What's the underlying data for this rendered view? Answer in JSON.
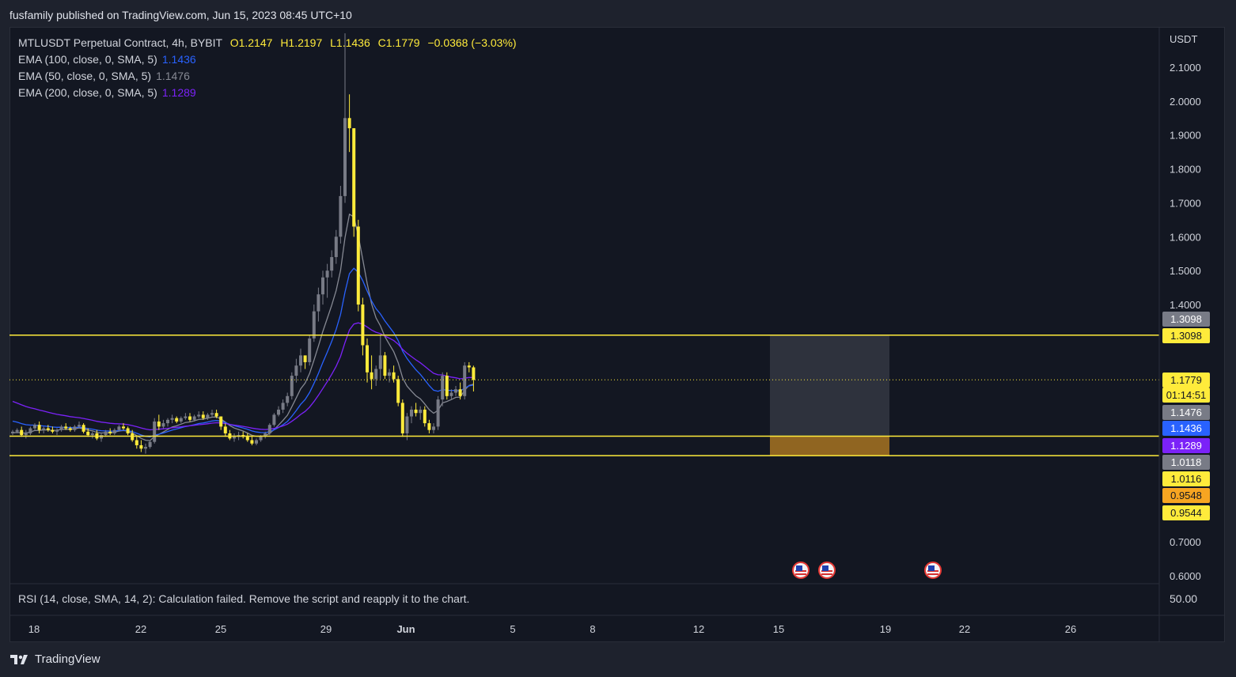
{
  "header": {
    "text": "fusfamily published on TradingView.com, Jun 15, 2023 08:45 UTC+10"
  },
  "legend": {
    "symbol": "MTLUSDT Perpetual Contract, 4h, BYBIT",
    "ohlc": {
      "o": "O1.2147",
      "h": "H1.2197",
      "l": "L1.1436",
      "c": "C1.1779",
      "change": "−0.0368 (−3.03%)"
    },
    "emas": [
      {
        "label": "EMA (100, close, 0, SMA, 5)",
        "value": "1.1436",
        "color": "#2962ff"
      },
      {
        "label": "EMA (50, close, 0, SMA, 5)",
        "value": "1.1476",
        "color": "#868993"
      },
      {
        "label": "EMA (200, close, 0, SMA, 5)",
        "value": "1.1289",
        "color": "#7b22f8"
      }
    ]
  },
  "price_scale": {
    "currency": "USDT",
    "tags": [
      {
        "text": "1.3098",
        "bg": "#787b86",
        "fg": "#ffffff"
      },
      {
        "text": "1.3098",
        "bg": "#ffeb3b",
        "fg": "#131722"
      },
      {
        "text": "1.1779",
        "bg": "#ffeb3b",
        "fg": "#131722"
      },
      {
        "text": "01:14:51",
        "bg": "#ffeb3b",
        "fg": "#131722"
      },
      {
        "text": "1.1476",
        "bg": "#787b86",
        "fg": "#ffffff"
      },
      {
        "text": "1.1436",
        "bg": "#2962ff",
        "fg": "#ffffff"
      },
      {
        "text": "1.1289",
        "bg": "#7b22f8",
        "fg": "#ffffff"
      },
      {
        "text": "1.0118",
        "bg": "#787b86",
        "fg": "#ffffff"
      },
      {
        "text": "1.0116",
        "bg": "#ffeb3b",
        "fg": "#131722"
      },
      {
        "text": "0.9548",
        "bg": "#f7a521",
        "fg": "#131722"
      },
      {
        "text": "0.9544",
        "bg": "#ffeb3b",
        "fg": "#131722"
      }
    ]
  },
  "rsi": {
    "text": "RSI (14, close, SMA, 14, 2): Calculation failed. Remove the script and reapply it to the chart.",
    "value": "50.00"
  },
  "footer": {
    "brand": "TradingView"
  },
  "chart_data": {
    "type": "candlestick",
    "symbol": "MTLUSDT Perpetual Contract",
    "timeframe": "4h",
    "exchange": "BYBIT",
    "currency": "USDT",
    "price_axis_ticks": [
      "0.6000",
      "0.7000",
      "1.4000",
      "1.5000",
      "1.6000",
      "1.7000",
      "1.8000",
      "1.9000",
      "2.0000",
      "2.1000"
    ],
    "time_axis_ticks": [
      "18",
      "22",
      "25",
      "29",
      "Jun",
      "5",
      "8",
      "12",
      "15",
      "19",
      "22",
      "26"
    ],
    "horizontal_lines": [
      1.3098,
      1.0116,
      0.9544
    ],
    "position_box": {
      "top": 1.3098,
      "entry": 1.0116,
      "stop": 0.9544
    },
    "current_price": 1.1779,
    "bar_countdown": "01:14:51",
    "ema": {
      "ema100": 1.1436,
      "ema50": 1.1476,
      "ema200": 1.1289
    },
    "colors": {
      "up": "#787b86",
      "down": "#ffeb3b",
      "ema100": "#2962ff",
      "ema50": "#868993",
      "ema200": "#7b22f8",
      "hline": "#ffeb3b"
    },
    "candles": [
      [
        1.02,
        1.03,
        1.015,
        1.025
      ],
      [
        1.025,
        1.035,
        1.02,
        1.03
      ],
      [
        1.03,
        1.04,
        1.01,
        1.015
      ],
      [
        1.015,
        1.03,
        1.005,
        1.02
      ],
      [
        1.02,
        1.04,
        1.015,
        1.035
      ],
      [
        1.035,
        1.05,
        1.03,
        1.045
      ],
      [
        1.045,
        1.055,
        1.02,
        1.03
      ],
      [
        1.03,
        1.04,
        1.02,
        1.035
      ],
      [
        1.035,
        1.045,
        1.025,
        1.03
      ],
      [
        1.03,
        1.04,
        1.02,
        1.025
      ],
      [
        1.025,
        1.035,
        1.015,
        1.03
      ],
      [
        1.03,
        1.045,
        1.025,
        1.04
      ],
      [
        1.04,
        1.05,
        1.03,
        1.035
      ],
      [
        1.035,
        1.04,
        1.025,
        1.03
      ],
      [
        1.03,
        1.045,
        1.025,
        1.04
      ],
      [
        1.04,
        1.055,
        1.035,
        1.045
      ],
      [
        1.045,
        1.05,
        1.02,
        1.025
      ],
      [
        1.025,
        1.035,
        1.01,
        1.015
      ],
      [
        1.015,
        1.025,
        1.005,
        1.02
      ],
      [
        1.02,
        1.03,
        1.0,
        1.005
      ],
      [
        1.005,
        1.02,
        0.995,
        1.015
      ],
      [
        1.015,
        1.03,
        1.01,
        1.025
      ],
      [
        1.025,
        1.035,
        1.015,
        1.02
      ],
      [
        1.02,
        1.035,
        1.015,
        1.03
      ],
      [
        1.03,
        1.045,
        1.025,
        1.04
      ],
      [
        1.04,
        1.05,
        1.03,
        1.035
      ],
      [
        1.035,
        1.04,
        1.015,
        1.02
      ],
      [
        1.02,
        1.03,
        0.995,
        1.0
      ],
      [
        1.0,
        1.01,
        0.975,
        0.985
      ],
      [
        0.985,
        1.0,
        0.965,
        0.975
      ],
      [
        0.975,
        0.99,
        0.96,
        0.98
      ],
      [
        0.98,
        1.0,
        0.975,
        0.995
      ],
      [
        0.995,
        1.065,
        0.99,
        1.055
      ],
      [
        1.055,
        1.075,
        1.03,
        1.04
      ],
      [
        1.04,
        1.06,
        1.035,
        1.05
      ],
      [
        1.05,
        1.065,
        1.04,
        1.06
      ],
      [
        1.06,
        1.075,
        1.05,
        1.065
      ],
      [
        1.065,
        1.07,
        1.05,
        1.055
      ],
      [
        1.055,
        1.07,
        1.05,
        1.065
      ],
      [
        1.065,
        1.08,
        1.06,
        1.07
      ],
      [
        1.07,
        1.08,
        1.055,
        1.06
      ],
      [
        1.06,
        1.075,
        1.055,
        1.07
      ],
      [
        1.07,
        1.085,
        1.065,
        1.075
      ],
      [
        1.075,
        1.085,
        1.06,
        1.065
      ],
      [
        1.065,
        1.08,
        1.06,
        1.075
      ],
      [
        1.075,
        1.09,
        1.07,
        1.08
      ],
      [
        1.08,
        1.09,
        1.065,
        1.07
      ],
      [
        1.07,
        1.06,
        1.03,
        1.04
      ],
      [
        1.04,
        1.05,
        1.01,
        1.02
      ],
      [
        1.02,
        1.03,
        1.0,
        1.005
      ],
      [
        1.005,
        1.02,
        0.995,
        1.01
      ],
      [
        1.01,
        1.025,
        1.0,
        1.015
      ],
      [
        1.015,
        1.025,
        1.005,
        1.01
      ],
      [
        1.01,
        1.02,
        0.995,
        1.0
      ],
      [
        1.0,
        1.01,
        0.985,
        0.99
      ],
      [
        0.99,
        1.005,
        0.985,
        1.0
      ],
      [
        1.0,
        1.015,
        0.995,
        1.01
      ],
      [
        1.01,
        1.025,
        1.005,
        1.02
      ],
      [
        1.02,
        1.05,
        1.015,
        1.045
      ],
      [
        1.045,
        1.08,
        1.04,
        1.075
      ],
      [
        1.075,
        1.1,
        1.07,
        1.09
      ],
      [
        1.09,
        1.12,
        1.08,
        1.11
      ],
      [
        1.11,
        1.14,
        1.1,
        1.13
      ],
      [
        1.13,
        1.2,
        1.12,
        1.19
      ],
      [
        1.19,
        1.24,
        1.17,
        1.22
      ],
      [
        1.22,
        1.27,
        1.2,
        1.25
      ],
      [
        1.25,
        1.24,
        1.21,
        1.23
      ],
      [
        1.23,
        1.31,
        1.22,
        1.3
      ],
      [
        1.3,
        1.4,
        1.29,
        1.38
      ],
      [
        1.38,
        1.45,
        1.35,
        1.43
      ],
      [
        1.43,
        1.5,
        1.4,
        1.48
      ],
      [
        1.48,
        1.52,
        1.42,
        1.5
      ],
      [
        1.5,
        1.56,
        1.48,
        1.54
      ],
      [
        1.54,
        1.62,
        1.52,
        1.6
      ],
      [
        1.6,
        1.75,
        1.58,
        1.72
      ],
      [
        1.72,
        2.2,
        1.7,
        1.95
      ],
      [
        1.95,
        2.02,
        1.85,
        1.92
      ],
      [
        1.92,
        1.92,
        1.6,
        1.63
      ],
      [
        1.63,
        1.65,
        1.38,
        1.4
      ],
      [
        1.4,
        1.42,
        1.25,
        1.28
      ],
      [
        1.28,
        1.3,
        1.17,
        1.2
      ],
      [
        1.2,
        1.25,
        1.15,
        1.18
      ],
      [
        1.18,
        1.22,
        1.16,
        1.21
      ],
      [
        1.21,
        1.31,
        1.18,
        1.25
      ],
      [
        1.25,
        1.26,
        1.18,
        1.19
      ],
      [
        1.19,
        1.21,
        1.17,
        1.2
      ],
      [
        1.2,
        1.22,
        1.17,
        1.18
      ],
      [
        1.18,
        1.19,
        1.1,
        1.11
      ],
      [
        1.11,
        1.12,
        1.01,
        1.02
      ],
      [
        1.02,
        1.08,
        1.0,
        1.07
      ],
      [
        1.07,
        1.1,
        1.05,
        1.09
      ],
      [
        1.09,
        1.11,
        1.07,
        1.08
      ],
      [
        1.08,
        1.1,
        1.06,
        1.09
      ],
      [
        1.09,
        1.1,
        1.04,
        1.05
      ],
      [
        1.05,
        1.06,
        1.02,
        1.03
      ],
      [
        1.03,
        1.05,
        1.02,
        1.04
      ],
      [
        1.04,
        1.13,
        1.03,
        1.12
      ],
      [
        1.12,
        1.2,
        1.1,
        1.19
      ],
      [
        1.19,
        1.2,
        1.12,
        1.13
      ],
      [
        1.13,
        1.15,
        1.12,
        1.14
      ],
      [
        1.14,
        1.16,
        1.13,
        1.15
      ],
      [
        1.15,
        1.17,
        1.12,
        1.13
      ],
      [
        1.13,
        1.23,
        1.12,
        1.22
      ],
      [
        1.22,
        1.23,
        1.2,
        1.2147
      ],
      [
        1.2147,
        1.2197,
        1.1436,
        1.1779
      ]
    ]
  }
}
